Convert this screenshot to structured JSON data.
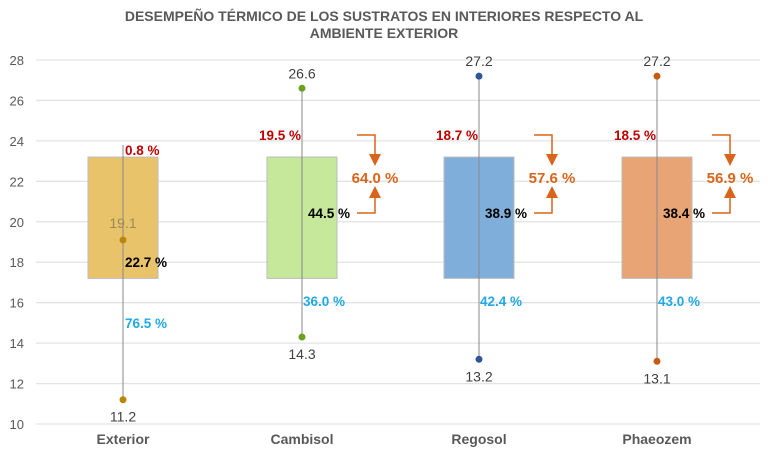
{
  "chart_data": {
    "type": "box",
    "title_line1": "DESEMPEÑO TÉRMICO DE LOS SUSTRATOS EN INTERIORES RESPECTO AL",
    "title_line2": "AMBIENTE EXTERIOR",
    "ylim": [
      10,
      28
    ],
    "yticks": [
      10,
      12,
      14,
      16,
      18,
      20,
      22,
      24,
      26,
      28
    ],
    "grid": true,
    "categories": [
      "Exterior",
      "Cambisol",
      "Regosol",
      "Phaeozem"
    ],
    "series": [
      {
        "category": "Exterior",
        "box_low": 17.2,
        "box_high": 23.2,
        "max": 23.8,
        "min": 11.2,
        "point": 19.1,
        "point_label": "19.1",
        "min_label": "11.2",
        "pct_top": "0.8 %",
        "pct_mid": "22.7 %",
        "pct_bottom": "76.5 %",
        "color": "#E8C36A",
        "dot": "#B8860B"
      },
      {
        "category": "Cambisol",
        "box_low": 17.2,
        "box_high": 23.2,
        "max": 26.6,
        "min": 14.3,
        "max_label": "26.6",
        "min_label": "14.3",
        "pct_top": "19.5 %",
        "pct_mid": "44.5 %",
        "pct_bottom": "36.0 %",
        "pct_sum": "64.0 %",
        "color": "#C5E89A",
        "dot": "#6AA121"
      },
      {
        "category": "Regosol",
        "box_low": 17.2,
        "box_high": 23.2,
        "max": 27.2,
        "min": 13.2,
        "max_label": "27.2",
        "min_label": "13.2",
        "pct_top": "18.7 %",
        "pct_mid": "38.9 %",
        "pct_bottom": "42.4 %",
        "pct_sum": "57.6 %",
        "color": "#7FAEDB",
        "dot": "#2F5597"
      },
      {
        "category": "Phaeozem",
        "box_low": 17.2,
        "box_high": 23.2,
        "max": 27.2,
        "min": 13.1,
        "max_label": "27.2",
        "min_label": "13.1",
        "pct_top": "18.5 %",
        "pct_mid": "38.4 %",
        "pct_bottom": "43.0 %",
        "pct_sum": "56.9 %",
        "color": "#E9A476",
        "dot": "#C55A11"
      }
    ],
    "colors": {
      "top_pct": "#C00000",
      "mid_pct": "#000000",
      "bottom_pct": "#1FA9E6",
      "sum_pct": "#D8651B",
      "grid": "#E3E3E3",
      "axis_text": "#595959"
    }
  }
}
